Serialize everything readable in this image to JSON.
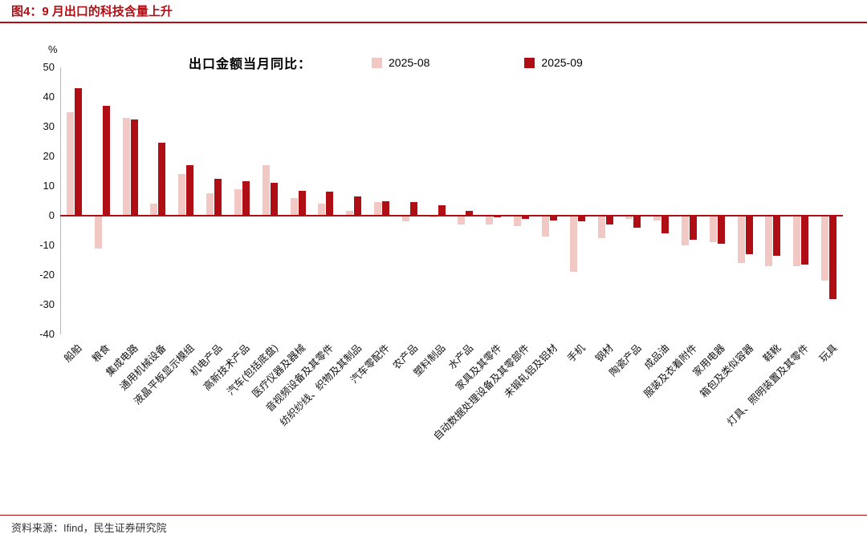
{
  "figure": {
    "title": "图4：9 月出口的科技含量上升",
    "source": "资料来源：Ifind，民生证券研究院"
  },
  "chart_data": {
    "type": "bar",
    "title": "出口金额当月同比：",
    "unit_label": "%",
    "ylim": [
      -40,
      50
    ],
    "ytick_step": 10,
    "grid": false,
    "legend_position": "top",
    "colors": {
      "axis": "#b00e15",
      "series_2025_08": "#f2c8c5",
      "series_2025_09": "#b00e15"
    },
    "categories": [
      "船舶",
      "粮食",
      "集成电路",
      "通用机械设备",
      "液晶平板显示模组",
      "机电产品",
      "高新技术产品",
      "汽车(包括底盘)",
      "医疗仪器及器械",
      "音视频设备及其零件",
      "纺织纱线、织物及其制品",
      "汽车零配件",
      "农产品",
      "塑料制品",
      "水产品",
      "家具及其零件",
      "自动数据处理设备及其零部件",
      "未锻轧铝及铝材",
      "手机",
      "钢材",
      "陶瓷产品",
      "成品油",
      "服装及衣着附件",
      "家用电器",
      "箱包及类似容器",
      "鞋靴",
      "灯具、照明装置及其零件",
      "玩具"
    ],
    "series": [
      {
        "name": "2025-08",
        "color": "#f2c8c5",
        "values": [
          35,
          -11,
          33,
          4,
          14,
          7.5,
          9,
          17,
          6,
          4,
          1.5,
          4.5,
          -2,
          -0.5,
          -3,
          -3,
          -3.5,
          -7,
          -19,
          -7.5,
          -1,
          -1.5,
          -10,
          -9,
          -16,
          -17,
          -17,
          -22
        ]
      },
      {
        "name": "2025-09",
        "color": "#b00e15",
        "values": [
          43,
          37,
          32.5,
          24.5,
          17,
          12.5,
          11.5,
          11,
          8.5,
          8,
          6.5,
          5,
          4.5,
          3.5,
          1.5,
          -0.5,
          -1,
          -1.5,
          -2,
          -3,
          -4,
          -6,
          -8,
          -9.5,
          -13,
          -13.5,
          -16.5,
          -28
        ]
      }
    ]
  }
}
